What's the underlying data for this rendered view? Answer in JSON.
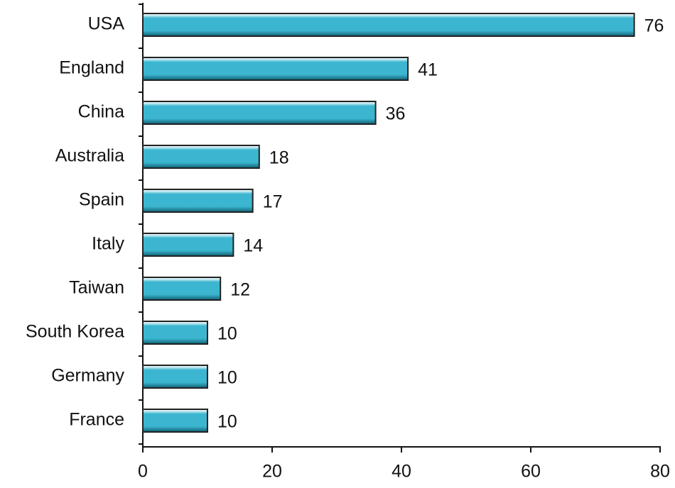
{
  "chart_data": {
    "type": "bar",
    "orientation": "horizontal",
    "categories": [
      "USA",
      "England",
      "China",
      "Australia",
      "Spain",
      "Italy",
      "Taiwan",
      "South Korea",
      "Germany",
      "France"
    ],
    "values": [
      76,
      41,
      36,
      18,
      17,
      14,
      12,
      10,
      10,
      10
    ],
    "color": "#3cb6d0",
    "xlim": [
      0,
      80
    ],
    "xticks": [
      0,
      20,
      40,
      60,
      80
    ],
    "grid": false
  }
}
